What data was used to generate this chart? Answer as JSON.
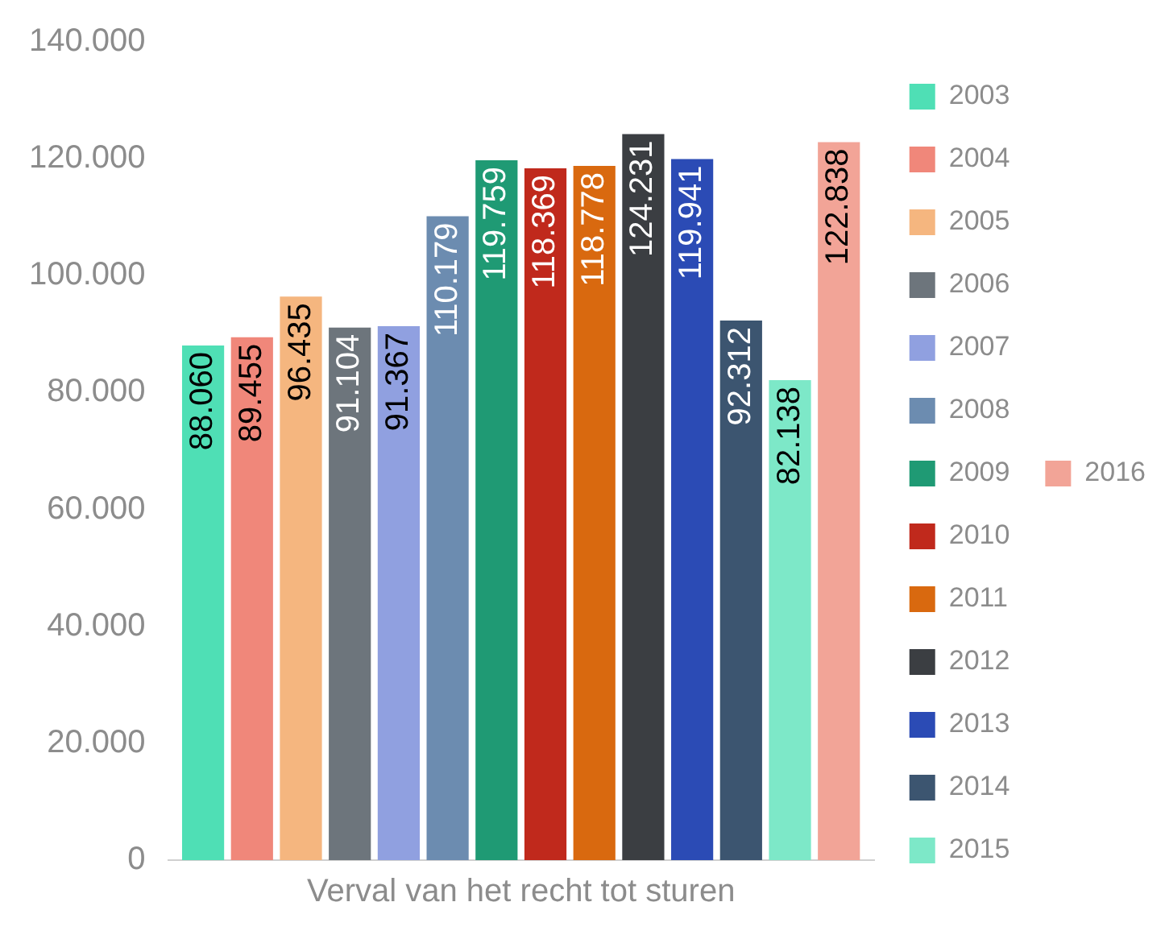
{
  "chart_data": {
    "type": "bar",
    "categories": [
      "Verval van het recht tot sturen"
    ],
    "series": [
      {
        "name": "2003",
        "color": "#4fdfb5",
        "values": [
          88060
        ],
        "value_labels": [
          "88.060"
        ]
      },
      {
        "name": "2004",
        "color": "#f0877a",
        "values": [
          89455
        ],
        "value_labels": [
          "89.455"
        ]
      },
      {
        "name": "2005",
        "color": "#f5b67f",
        "values": [
          96435
        ],
        "value_labels": [
          "96.435"
        ]
      },
      {
        "name": "2006",
        "color": "#6d757c",
        "values": [
          91104
        ],
        "value_labels": [
          "91.104"
        ]
      },
      {
        "name": "2007",
        "color": "#90a0e0",
        "values": [
          91367
        ],
        "value_labels": [
          "91.367"
        ]
      },
      {
        "name": "2008",
        "color": "#6c8cb0",
        "values": [
          110179
        ],
        "value_labels": [
          "110.179"
        ]
      },
      {
        "name": "2009",
        "color": "#1f9a74",
        "values": [
          119759
        ],
        "value_labels": [
          "119.759"
        ]
      },
      {
        "name": "2010",
        "color": "#c0291c",
        "values": [
          118369
        ],
        "value_labels": [
          "118.369"
        ]
      },
      {
        "name": "2011",
        "color": "#d9690f",
        "values": [
          118778
        ],
        "value_labels": [
          "118.778"
        ]
      },
      {
        "name": "2012",
        "color": "#3b3e42",
        "values": [
          124231
        ],
        "value_labels": [
          "124.231"
        ]
      },
      {
        "name": "2013",
        "color": "#2b4bb5",
        "values": [
          119941
        ],
        "value_labels": [
          "119.941"
        ]
      },
      {
        "name": "2014",
        "color": "#3c5570",
        "values": [
          92312
        ],
        "value_labels": [
          "92.312"
        ]
      },
      {
        "name": "2015",
        "color": "#7de8c8",
        "values": [
          82138
        ],
        "value_labels": [
          "82.138"
        ]
      },
      {
        "name": "2016",
        "color": "#f2a497",
        "values": [
          122838
        ],
        "value_labels": [
          "122.838"
        ]
      }
    ],
    "ylim": [
      0,
      140000
    ],
    "yticks": [
      {
        "value": 0,
        "label": "0"
      },
      {
        "value": 20000,
        "label": "20.000"
      },
      {
        "value": 40000,
        "label": "40.000"
      },
      {
        "value": 60000,
        "label": "60.000"
      },
      {
        "value": 80000,
        "label": "80.000"
      },
      {
        "value": 100000,
        "label": "100.000"
      },
      {
        "value": 120000,
        "label": "120.000"
      },
      {
        "value": 140000,
        "label": "140.000"
      }
    ],
    "grid": false,
    "legend": "right"
  }
}
